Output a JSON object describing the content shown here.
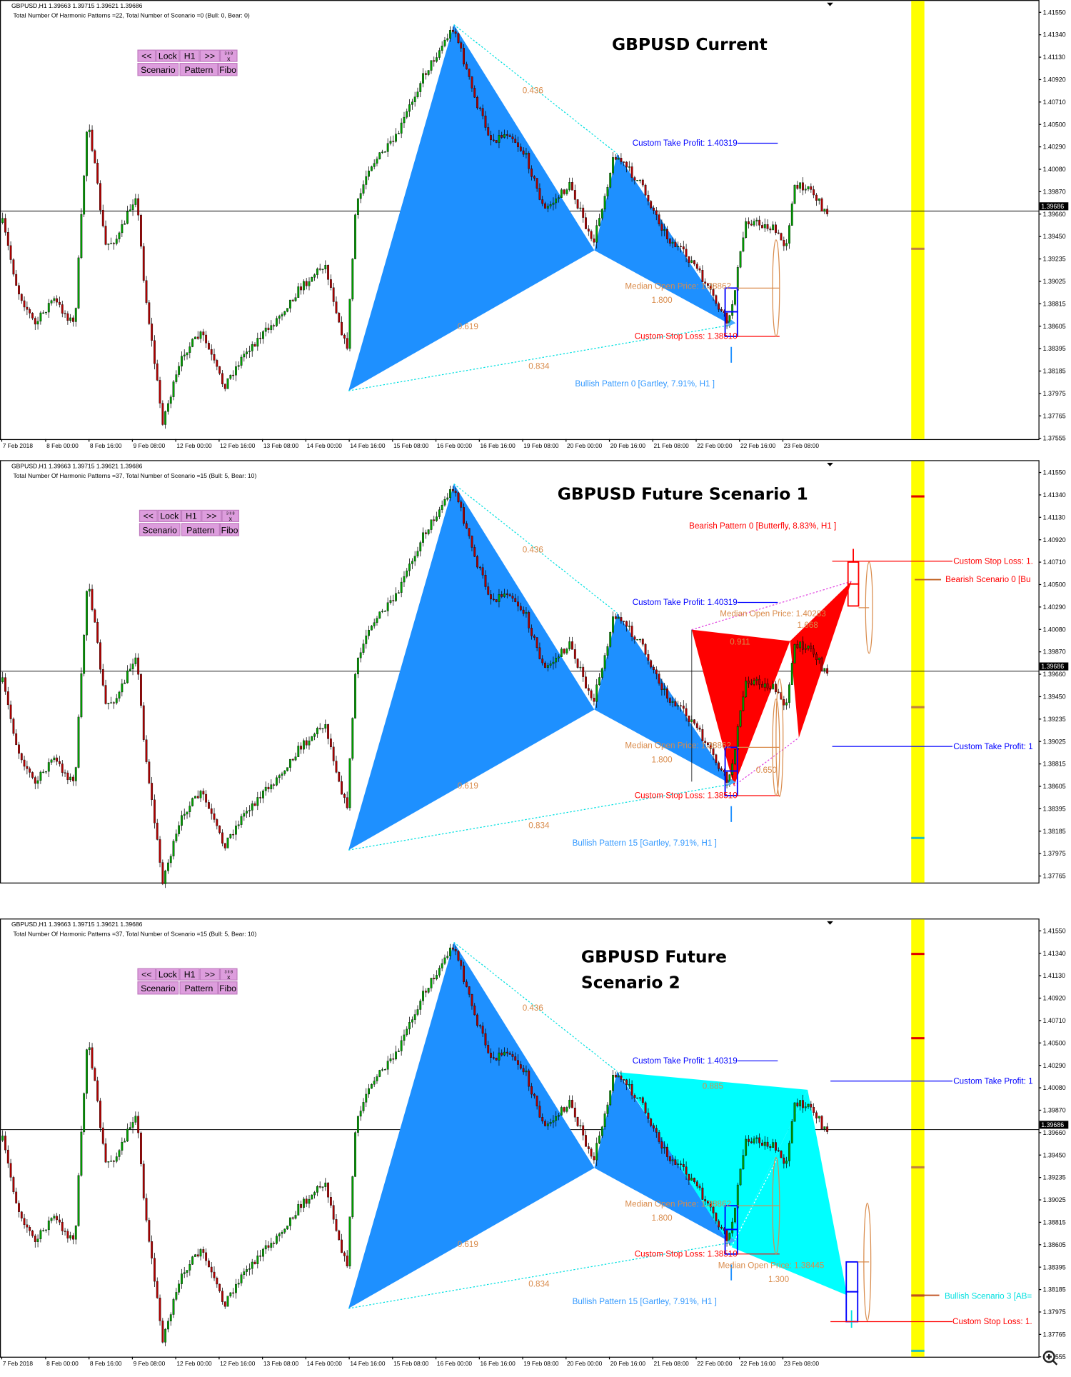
{
  "symbol_header": "GBPUSD,H1  1.39663 1.39715 1.39621 1.39686",
  "current_price": "1.39686",
  "price_axis": [
    "1.41550",
    "1.41340",
    "1.41130",
    "1.40920",
    "1.40710",
    "1.40500",
    "1.40290",
    "1.40080",
    "1.39870",
    "1.39660",
    "1.39450",
    "1.39235",
    "1.39025",
    "1.38815",
    "1.38605",
    "1.38395",
    "1.38185",
    "1.37975",
    "1.37765",
    "1.37555"
  ],
  "time_axis": [
    "7 Feb 2018",
    "8 Feb 00:00",
    "8 Feb 16:00",
    "9 Feb 08:00",
    "12 Feb 00:00",
    "12 Feb 16:00",
    "13 Feb 08:00",
    "14 Feb 00:00",
    "14 Feb 16:00",
    "15 Feb 08:00",
    "16 Feb 00:00",
    "16 Feb 16:00",
    "19 Feb 08:00",
    "20 Feb 00:00",
    "20 Feb 16:00",
    "21 Feb 08:00",
    "22 Feb 00:00",
    "22 Feb 16:00",
    "23 Feb 08:00"
  ],
  "toolbar": {
    "prev": "<<",
    "lock": "Lock",
    "timeframe": "H1",
    ">next": ">>",
    "next": ">>",
    "mini_top": "3 ll 8",
    "mini_bottom": "x",
    "scenario": "Scenario",
    "pattern": "Pattern",
    "fibo": "Fibo"
  },
  "colors": {
    "bull_pattern": "#1e90ff",
    "bear_pattern": "#ff0000",
    "scenario_bull": "#00ffff",
    "take_profit": "#0000ff",
    "stop_loss": "#ff0000",
    "median": "#d98b4b",
    "scenario_bar": "#ffff00",
    "bull_candle": "#00a000",
    "bear_candle": "#b00000"
  },
  "panels": [
    {
      "summary": "Total Number Of Harmonic Patterns =22, Total Number of Scenario =0 (Bull: 0, Bear: 0)",
      "title": [
        "GBPUSD Current"
      ],
      "labels": {
        "r_436": "0.436",
        "r_619": "0.619",
        "r_834": "0.834",
        "r_1800": "1.800",
        "tp": "Custom Take Profit: 1.40319",
        "median": "Median Open Price: 1.38862",
        "sl": "Custom Stop Loss: 1.38510",
        "pattern": "Bullish Pattern 0  [Gartley,  7.91%, H1 ]"
      }
    },
    {
      "summary": "Total Number Of Harmonic Patterns =37, Total Number of Scenario =15 (Bull: 5, Bear: 10)",
      "title": [
        "GBPUSD Future Scenario 1"
      ],
      "labels": {
        "r_436": "0.436",
        "r_619": "0.619",
        "r_834": "0.834",
        "r_1800": "1.800",
        "tp": "Custom Take Profit: 1.40319",
        "median": "Median Open Price: 1.38862",
        "sl": "Custom Stop Loss: 1.38510",
        "pattern": "Bullish Pattern 15  [Gartley,  7.91%, H1 ]",
        "bear_pattern": "Bearish Pattern 0  [Butterfly,  8.83%, H1 ]",
        "r_911": "0.911",
        "r_1668": "1.668",
        "r_650": "0.650",
        "bear_median": "Median Open Price: 1.40283",
        "sc_sl": "Custom Stop Loss: 1.",
        "sc_name": "Bearish Scenario 0  [Bu",
        "sc_tp": "Custom Take Profit: 1"
      }
    },
    {
      "summary": "Total Number Of Harmonic Patterns =37, Total Number of Scenario =15 (Bull: 5, Bear: 10)",
      "title": [
        "GBPUSD Future",
        "Scenario 2"
      ],
      "labels": {
        "r_436": "0.436",
        "r_619": "0.619",
        "r_834": "0.834",
        "r_1800": "1.800",
        "tp": "Custom Take Profit: 1.40319",
        "median": "Median Open Price: 1.38862",
        "sl": "Custom Stop Loss: 1.38510",
        "pattern": "Bullish Pattern 15  [Gartley,  7.91%, H1 ]",
        "r_885": "0.885",
        "r_1300": "1.300",
        "sc_median": "Median Open Price: 1.38445",
        "sc_tp": "Custom Take Profit: 1",
        "sc_name": "Bullish Scenario 3  [AB=",
        "sc_sl": "Custom Stop Loss: 1."
      }
    }
  ]
}
